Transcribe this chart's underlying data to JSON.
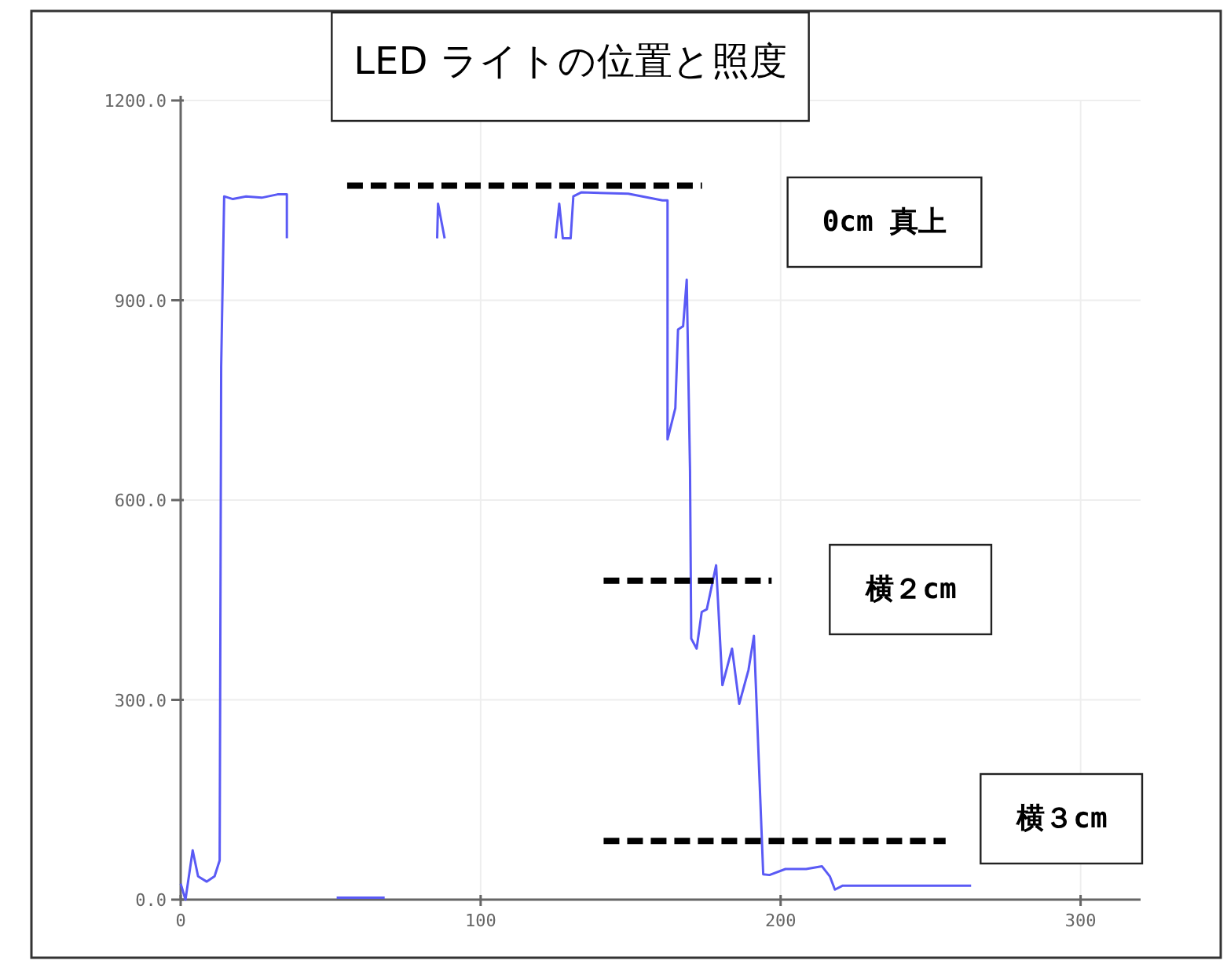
{
  "chart_data": {
    "type": "line",
    "title": "LED ライトの位置と照度",
    "xlim": [
      0,
      320
    ],
    "ylim": [
      0,
      1200
    ],
    "xticks": [
      0,
      100,
      200,
      300
    ],
    "yticks": [
      {
        "value": 0,
        "label": "0.0"
      },
      {
        "value": 300,
        "label": "300.0"
      },
      {
        "value": 600,
        "label": "600.0"
      },
      {
        "value": 900,
        "label": "900.0"
      },
      {
        "value": 1200,
        "label": "1200.0"
      }
    ],
    "grid": true,
    "marker": "none",
    "series": [
      {
        "color": "#5a5af5",
        "line_style": "solid",
        "x": [
          0,
          1.6,
          4,
          5.8,
          8.7,
          11.3,
          13,
          13.5,
          14.5,
          17.4,
          21.8,
          27,
          32.3,
          35.4,
          35.4
        ],
        "values": [
          24,
          0,
          74,
          35,
          27,
          35,
          59,
          800,
          1056,
          1052,
          1056,
          1054,
          1059,
          1059,
          993
        ]
      },
      {
        "color": "#5a5af5",
        "line_style": "solid",
        "x": [
          52,
          68
        ],
        "values": [
          3,
          3
        ]
      },
      {
        "color": "#5a5af5",
        "line_style": "solid",
        "x": [
          85.5,
          85.8,
          88
        ],
        "values": [
          993,
          1045,
          993
        ]
      },
      {
        "color": "#5a5af5",
        "line_style": "solid",
        "x": [
          125,
          126.2,
          127.4,
          130,
          130.9,
          133.5,
          149.2,
          160.6,
          162.3,
          162.3,
          164.9,
          165.8,
          167.5,
          168.7,
          169.8,
          170.2,
          172,
          173.7,
          175.4,
          178.5,
          180.6,
          183.8,
          186.2,
          189.3,
          191.1,
          194.2,
          196.3,
          201.6,
          208.5,
          213.8,
          216.4,
          218.1,
          220.7,
          263.5
        ],
        "values": [
          993,
          1045,
          993,
          993,
          1056,
          1062,
          1060,
          1050,
          1050,
          691,
          738,
          856,
          861,
          931,
          644,
          392,
          377,
          432,
          436,
          502,
          322,
          377,
          294,
          345,
          396,
          38,
          37,
          46,
          46,
          50,
          35,
          15,
          21,
          21
        ]
      },
      {
        "color": "#000000",
        "line_style": "dashed",
        "x": [
          55.5,
          173.8
        ],
        "values": [
          1072,
          1072
        ]
      },
      {
        "color": "#000000",
        "line_style": "dashed",
        "x": [
          141,
          197
        ],
        "values": [
          479,
          479
        ]
      },
      {
        "color": "#000000",
        "line_style": "dashed",
        "x": [
          141,
          255
        ],
        "values": [
          88,
          88
        ]
      }
    ],
    "annotations": [
      "0cm 真上",
      "横２cm",
      "横３cm"
    ]
  }
}
